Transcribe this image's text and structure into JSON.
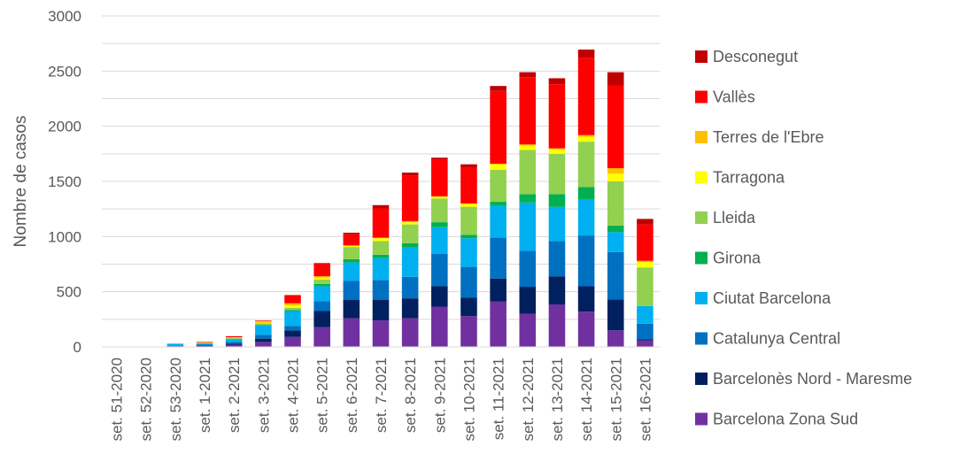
{
  "chart_data": {
    "type": "bar",
    "stacked": true,
    "title": "",
    "xlabel": "",
    "ylabel": "Nombre de casos",
    "ylim": [
      0,
      3000
    ],
    "yticks": [
      "0",
      "500",
      "1000",
      "1500",
      "2000",
      "2500",
      "3000"
    ],
    "grid": true,
    "legend_position": "right",
    "categories": [
      "set. 51-2020",
      "set. 52-2020",
      "set. 53-2020",
      "set. 1-2021",
      "set. 2-2021",
      "set. 3-2021",
      "set. 4-2021",
      "set. 5-2021",
      "set. 6-2021",
      "set. 7-2021",
      "set. 8-2021",
      "set. 9-2021",
      "set. 10-2021",
      "set. 11-2021",
      "set. 12-2021",
      "set. 13-2021",
      "set. 14-2021",
      "set. 15-2021",
      "set. 16-2021"
    ],
    "series": [
      {
        "name": "Barcelona Zona Sud",
        "color": "#7030A0",
        "values": [
          0,
          0,
          5,
          10,
          20,
          45,
          90,
          180,
          260,
          240,
          260,
          365,
          280,
          410,
          300,
          385,
          320,
          150,
          60
        ]
      },
      {
        "name": "Barcelonès Nord - Maresme",
        "color": "#002060",
        "values": [
          0,
          0,
          2,
          5,
          10,
          30,
          60,
          145,
          165,
          185,
          180,
          185,
          165,
          210,
          245,
          255,
          230,
          280,
          10
        ]
      },
      {
        "name": "Catalunya Central",
        "color": "#0070C0",
        "values": [
          0,
          0,
          4,
          5,
          15,
          35,
          40,
          90,
          175,
          180,
          195,
          295,
          280,
          370,
          325,
          320,
          460,
          430,
          140
        ]
      },
      {
        "name": "Ciutat Barcelona",
        "color": "#00B0F0",
        "values": [
          0,
          0,
          18,
          10,
          25,
          85,
          135,
          135,
          165,
          200,
          265,
          240,
          260,
          290,
          440,
          310,
          330,
          180,
          160
        ]
      },
      {
        "name": "Girona",
        "color": "#00B050",
        "values": [
          0,
          0,
          0,
          2,
          3,
          5,
          10,
          20,
          30,
          30,
          40,
          45,
          30,
          35,
          75,
          115,
          110,
          60,
          0
        ]
      },
      {
        "name": "Lleida",
        "color": "#92D050",
        "values": [
          0,
          0,
          0,
          5,
          10,
          15,
          20,
          40,
          110,
          125,
          170,
          215,
          255,
          290,
          400,
          365,
          410,
          400,
          350
        ]
      },
      {
        "name": "Tarragona",
        "color": "#FFFF00",
        "values": [
          0,
          0,
          0,
          2,
          2,
          5,
          20,
          20,
          10,
          25,
          20,
          15,
          25,
          50,
          40,
          40,
          45,
          70,
          50
        ]
      },
      {
        "name": "Terres de l'Ebre",
        "color": "#FFC000",
        "values": [
          0,
          0,
          0,
          1,
          2,
          15,
          20,
          10,
          5,
          5,
          10,
          5,
          5,
          5,
          10,
          10,
          15,
          50,
          10
        ]
      },
      {
        "name": "Vallès",
        "color": "#FF0000",
        "values": [
          0,
          0,
          0,
          5,
          10,
          5,
          75,
          120,
          100,
          265,
          410,
          335,
          325,
          660,
          610,
          580,
          700,
          750,
          330
        ]
      },
      {
        "name": "Desconegut",
        "color": "#C00000",
        "values": [
          0,
          0,
          0,
          0,
          0,
          0,
          0,
          0,
          15,
          30,
          30,
          15,
          30,
          45,
          45,
          55,
          75,
          120,
          50
        ]
      }
    ]
  }
}
